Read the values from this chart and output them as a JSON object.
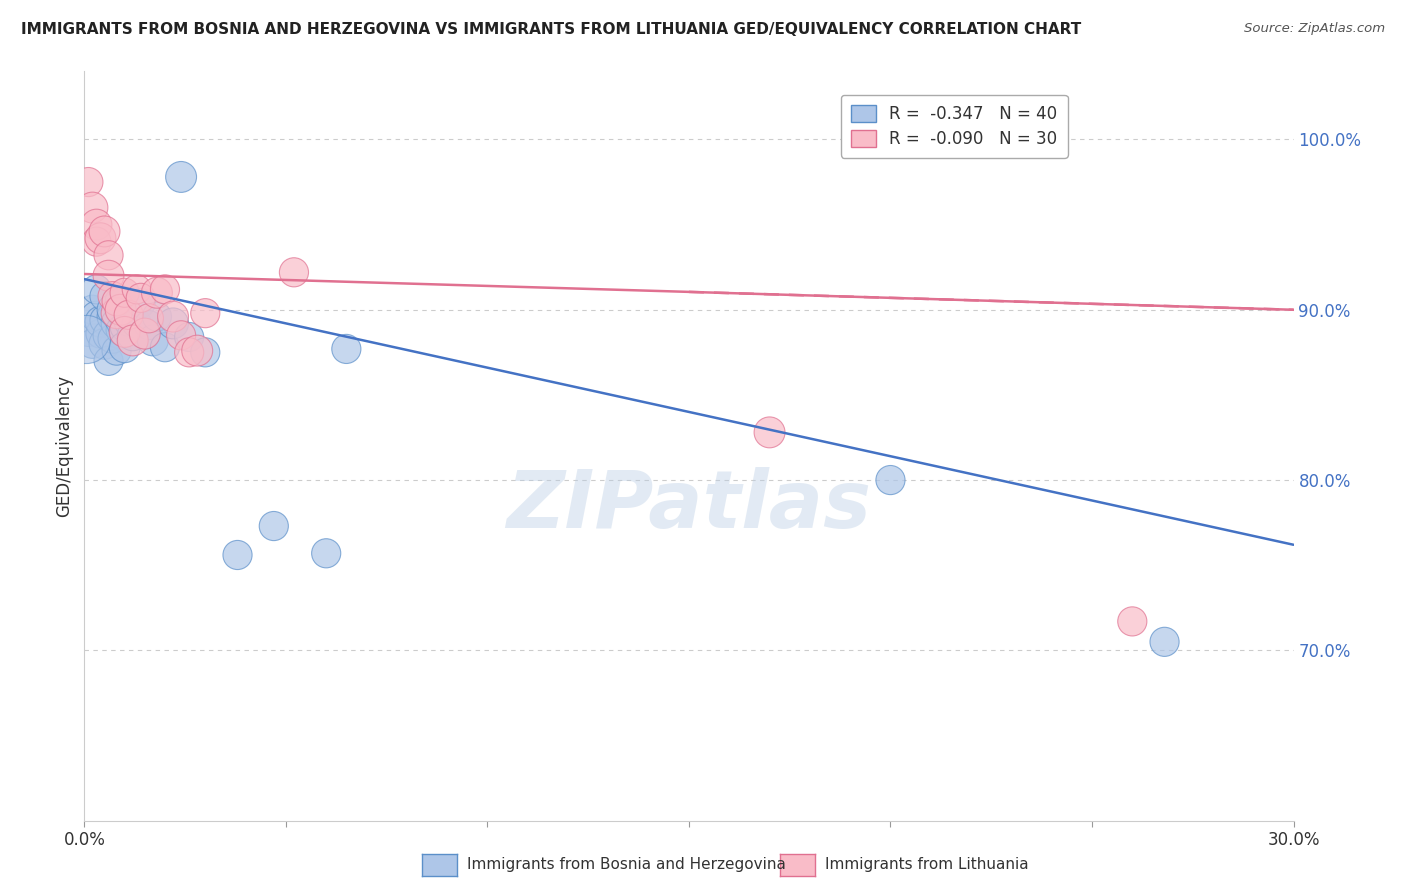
{
  "title": "IMMIGRANTS FROM BOSNIA AND HERZEGOVINA VS IMMIGRANTS FROM LITHUANIA GED/EQUIVALENCY CORRELATION CHART",
  "source": "Source: ZipAtlas.com",
  "ylabel": "GED/Equivalency",
  "legend_blue_r": "-0.347",
  "legend_blue_n": "40",
  "legend_pink_r": "-0.090",
  "legend_pink_n": "30",
  "legend_label_blue": "Immigrants from Bosnia and Herzegovina",
  "legend_label_pink": "Immigrants from Lithuania",
  "x_min": 0.0,
  "x_max": 0.3,
  "y_min": 0.6,
  "y_max": 1.04,
  "right_yticks": [
    1.0,
    0.9,
    0.8,
    0.7
  ],
  "right_yticklabels": [
    "100.0%",
    "90.0%",
    "80.0%",
    "70.0%"
  ],
  "bottom_xticks": [
    0.0,
    0.05,
    0.1,
    0.15,
    0.2,
    0.25,
    0.3
  ],
  "bottom_xticklabels": [
    "0.0%",
    "",
    "",
    "",
    "",
    "",
    "30.0%"
  ],
  "blue_fill": "#aec6e8",
  "blue_edge": "#5b8fc9",
  "pink_fill": "#f9bcc8",
  "pink_edge": "#e07090",
  "blue_line_color": "#4472C4",
  "pink_line_color": "#E07090",
  "watermark": "ZIPatlas",
  "blue_trend_x": [
    0.0,
    0.3
  ],
  "blue_trend_y": [
    0.918,
    0.762
  ],
  "pink_trend_x": [
    0.0,
    0.3
  ],
  "pink_trend_y": [
    0.921,
    0.9
  ],
  "blue_scatter_x": [
    0.001,
    0.002,
    0.002,
    0.003,
    0.003,
    0.004,
    0.004,
    0.005,
    0.005,
    0.005,
    0.006,
    0.006,
    0.007,
    0.007,
    0.007,
    0.008,
    0.008,
    0.009,
    0.009,
    0.01,
    0.01,
    0.011,
    0.012,
    0.013,
    0.014,
    0.015,
    0.016,
    0.017,
    0.018,
    0.02,
    0.022,
    0.024,
    0.026,
    0.03,
    0.038,
    0.047,
    0.06,
    0.065,
    0.2,
    0.268
  ],
  "blue_scatter_y": [
    0.887,
    0.9,
    0.88,
    0.896,
    0.912,
    0.886,
    0.893,
    0.894,
    0.88,
    0.908,
    0.885,
    0.87,
    0.896,
    0.9,
    0.883,
    0.892,
    0.876,
    0.888,
    0.905,
    0.89,
    0.878,
    0.893,
    0.885,
    0.892,
    0.904,
    0.886,
    0.891,
    0.882,
    0.896,
    0.878,
    0.892,
    0.978,
    0.884,
    0.875,
    0.756,
    0.773,
    0.757,
    0.877,
    0.8,
    0.705
  ],
  "blue_scatter_size": [
    8,
    8,
    8,
    9,
    8,
    8,
    9,
    8,
    9,
    8,
    9,
    8,
    9,
    9,
    8,
    9,
    8,
    8,
    9,
    8,
    9,
    8,
    9,
    8,
    8,
    9,
    8,
    9,
    8,
    8,
    9,
    9,
    8,
    8,
    8,
    8,
    8,
    8,
    8,
    8
  ],
  "blue_big_x": [
    0.001
  ],
  "blue_big_y": [
    0.883
  ],
  "pink_scatter_x": [
    0.001,
    0.002,
    0.003,
    0.003,
    0.004,
    0.005,
    0.006,
    0.006,
    0.007,
    0.008,
    0.008,
    0.009,
    0.01,
    0.01,
    0.011,
    0.012,
    0.013,
    0.014,
    0.015,
    0.016,
    0.018,
    0.02,
    0.022,
    0.024,
    0.026,
    0.028,
    0.03,
    0.052,
    0.17,
    0.26
  ],
  "pink_scatter_y": [
    0.975,
    0.96,
    0.95,
    0.94,
    0.942,
    0.946,
    0.932,
    0.92,
    0.908,
    0.898,
    0.905,
    0.9,
    0.91,
    0.887,
    0.897,
    0.882,
    0.912,
    0.907,
    0.886,
    0.895,
    0.91,
    0.912,
    0.896,
    0.885,
    0.875,
    0.876,
    0.898,
    0.922,
    0.828,
    0.717
  ],
  "pink_scatter_size": [
    8,
    9,
    9,
    8,
    9,
    9,
    8,
    9,
    8,
    9,
    8,
    9,
    8,
    9,
    8,
    9,
    8,
    8,
    9,
    8,
    9,
    8,
    9,
    8,
    8,
    9,
    8,
    8,
    9,
    8
  ]
}
